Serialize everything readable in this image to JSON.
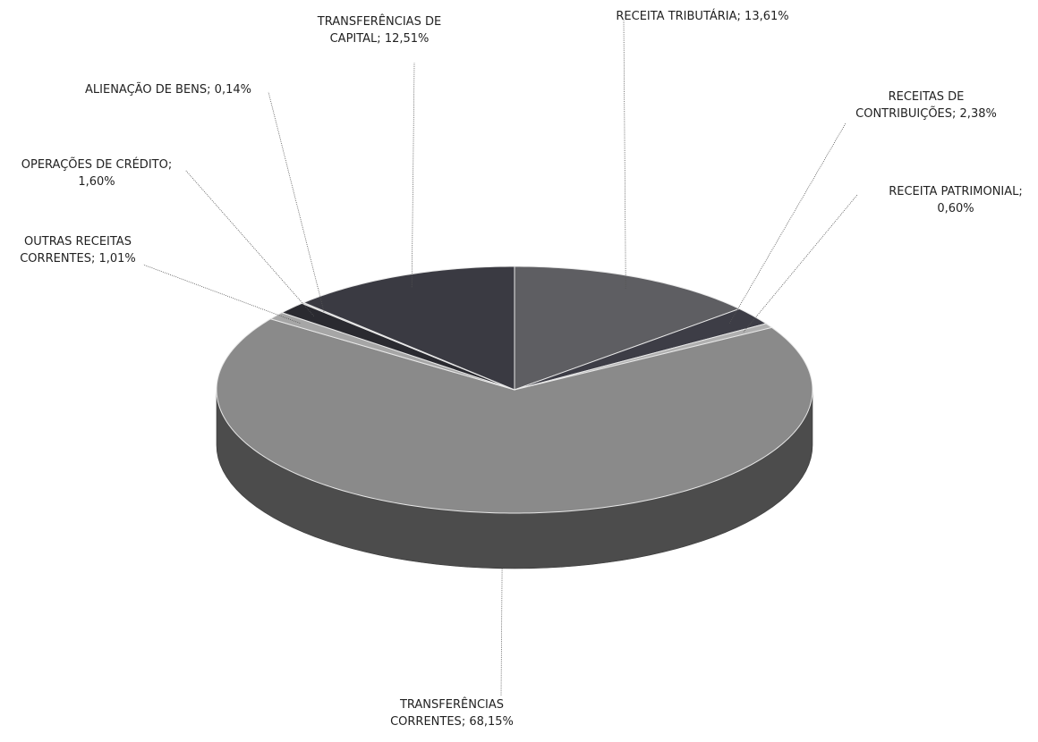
{
  "chart_data": {
    "type": "pie",
    "style": "3d",
    "title": "",
    "slices": [
      {
        "label_lines": [
          "RECEITA TRIBUTÁRIA; 13,61%"
        ],
        "name": "RECEITA TRIBUTÁRIA",
        "value": 13.61,
        "color": "#5e5e62"
      },
      {
        "label_lines": [
          "RECEITAS DE",
          "CONTRIBUIÇÕES; 2,38%"
        ],
        "name": "RECEITAS DE CONTRIBUIÇÕES",
        "value": 2.38,
        "color": "#3d3d46"
      },
      {
        "label_lines": [
          "RECEITA PATRIMONIAL;",
          "0,60%"
        ],
        "name": "RECEITA PATRIMONIAL",
        "value": 0.6,
        "color": "#b0b0b0"
      },
      {
        "label_lines": [
          "TRANSFERÊNCIAS",
          "CORRENTES; 68,15%"
        ],
        "name": "TRANSFERÊNCIAS CORRENTES",
        "value": 68.15,
        "color": "#8a8a8a"
      },
      {
        "label_lines": [
          "OUTRAS RECEITAS",
          "CORRENTES; 1,01%"
        ],
        "name": "OUTRAS RECEITAS CORRENTES",
        "value": 1.01,
        "color": "#a6a6a6"
      },
      {
        "label_lines": [
          "OPERAÇÕES DE CRÉDITO;",
          "1,60%"
        ],
        "name": "OPERAÇÕES DE CRÉDITO",
        "value": 1.6,
        "color": "#2a2a30"
      },
      {
        "label_lines": [
          "ALIENAÇÃO DE BENS; 0,14%"
        ],
        "name": "ALIENAÇÃO DE BENS",
        "value": 0.14,
        "color": "#cfcfcf"
      },
      {
        "label_lines": [
          "TRANSFERÊNCIAS DE",
          "CAPITAL; 12,51%"
        ],
        "name": "TRANSFERÊNCIAS DE CAPITAL",
        "value": 12.51,
        "color": "#3a3a42"
      }
    ],
    "legend": "none",
    "start_angle": "top (12 o'clock), clockwise"
  }
}
